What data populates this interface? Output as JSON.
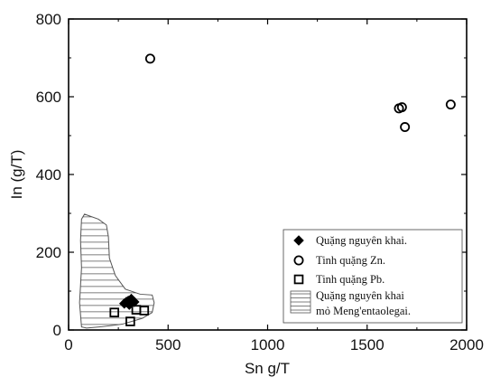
{
  "chart_data": {
    "type": "scatter",
    "xlabel": "Sn g/T",
    "ylabel": "In (g/T)",
    "xlim": [
      0,
      2000
    ],
    "ylim": [
      0,
      800
    ],
    "xticks": [
      "0",
      "500",
      "1000",
      "1500",
      "2000"
    ],
    "yticks": [
      "0",
      "200",
      "400",
      "600",
      "800"
    ],
    "grid": false,
    "legend_position": "bottom-right",
    "series": [
      {
        "name": "Quặng nguyên khai.",
        "marker": "filled-diamond",
        "color": "#000000",
        "points": [
          [
            280,
            68
          ],
          [
            300,
            75
          ],
          [
            315,
            80
          ],
          [
            330,
            72
          ],
          [
            305,
            65
          ],
          [
            290,
            72
          ]
        ]
      },
      {
        "name": "Tinh quặng Zn.",
        "marker": "open-circle",
        "color": "#000000",
        "points": [
          [
            410,
            698
          ],
          [
            1660,
            570
          ],
          [
            1675,
            573
          ],
          [
            1690,
            522
          ],
          [
            1920,
            580
          ]
        ]
      },
      {
        "name": "Tinh quặng Pb.",
        "marker": "open-square",
        "color": "#000000",
        "points": [
          [
            230,
            45
          ],
          [
            310,
            22
          ],
          [
            340,
            52
          ],
          [
            380,
            50
          ]
        ]
      }
    ],
    "region": {
      "name_line1": "Quặng nguyên khai",
      "name_line2": "mỏ Meng'entaolegai.",
      "fill": "horizontal-hatch",
      "polygon": [
        [
          80,
          298
        ],
        [
          150,
          285
        ],
        [
          190,
          270
        ],
        [
          200,
          240
        ],
        [
          205,
          185
        ],
        [
          235,
          140
        ],
        [
          285,
          105
        ],
        [
          360,
          92
        ],
        [
          420,
          90
        ],
        [
          430,
          70
        ],
        [
          420,
          45
        ],
        [
          370,
          30
        ],
        [
          270,
          15
        ],
        [
          160,
          8
        ],
        [
          90,
          5
        ],
        [
          65,
          8
        ],
        [
          55,
          70
        ],
        [
          65,
          160
        ],
        [
          60,
          230
        ],
        [
          65,
          285
        ]
      ]
    }
  }
}
